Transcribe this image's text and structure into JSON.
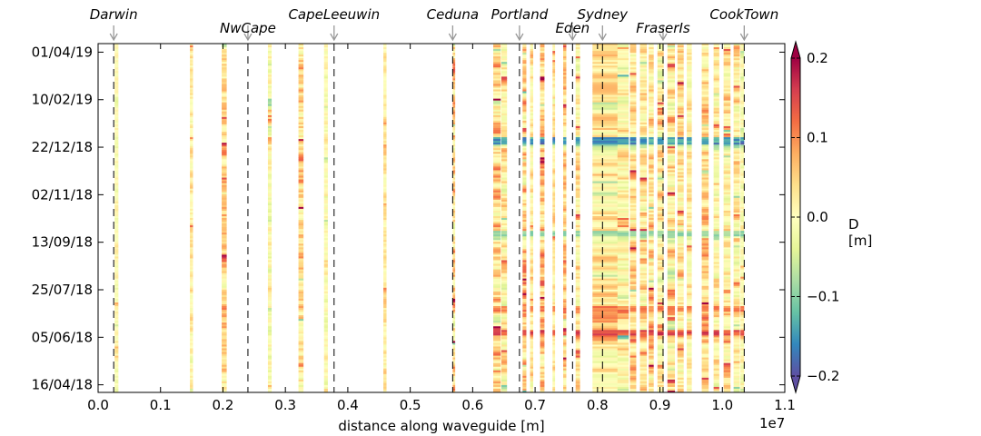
{
  "chart_data": {
    "type": "heatmap",
    "xlabel": "distance along waveguide [m]",
    "x_multiplier_label": "1e7",
    "x_tick_labels": [
      "0.0",
      "0.1",
      "0.2",
      "0.3",
      "0.4",
      "0.5",
      "0.6",
      "0.7",
      "0.8",
      "0.9",
      "1.0",
      "1.1"
    ],
    "x_ticks": [
      0.0,
      0.1,
      0.2,
      0.3,
      0.4,
      0.5,
      0.6,
      0.7,
      0.8,
      0.9,
      1.0,
      1.1
    ],
    "xlim": [
      0.0,
      1.1
    ],
    "y_tick_labels": [
      "01/04/19",
      "10/02/19",
      "22/12/18",
      "02/11/18",
      "13/09/18",
      "25/07/18",
      "05/06/18",
      "16/04/18"
    ],
    "ylim": [
      "2018-04-08",
      "2019-04-10"
    ],
    "y_ticks": [
      "2019-04-01",
      "2019-02-10",
      "2018-12-22",
      "2018-11-02",
      "2018-09-13",
      "2018-07-25",
      "2018-06-05",
      "2018-04-16"
    ],
    "colorbar": {
      "label": "D\n[m]",
      "label_lines": [
        "D",
        "[m]"
      ],
      "range": [
        -0.2,
        0.2
      ],
      "ticks": [
        0.2,
        0.1,
        0.0,
        -0.1,
        -0.2
      ],
      "tick_labels": [
        "0.2",
        "0.1",
        "0.0",
        "−0.1",
        "−0.2"
      ],
      "extend": "both",
      "colormap": "Spectral_r"
    },
    "stations": [
      {
        "name": "Darwin",
        "x": 0.025
      },
      {
        "name": "NwCape",
        "x": 0.24
      },
      {
        "name": "CapeLeeuwin",
        "x": 0.378
      },
      {
        "name": "Ceduna",
        "x": 0.568
      },
      {
        "name": "Portland",
        "x": 0.675
      },
      {
        "name": "Eden",
        "x": 0.76
      },
      {
        "name": "Sydney",
        "x": 0.808
      },
      {
        "name": "FraserIs",
        "x": 0.905
      },
      {
        "name": "CookTown",
        "x": 1.035
      }
    ],
    "data_columns": [
      {
        "x": 0.0265,
        "width": 0.006,
        "bias": 0.0,
        "spread": 0.05
      },
      {
        "x": 0.147,
        "width": 0.005,
        "bias": 0.02,
        "spread": 0.07
      },
      {
        "x": 0.198,
        "width": 0.008,
        "bias": 0.05,
        "spread": 0.1
      },
      {
        "x": 0.272,
        "width": 0.006,
        "bias": 0.0,
        "spread": 0.08
      },
      {
        "x": 0.321,
        "width": 0.008,
        "bias": 0.04,
        "spread": 0.11
      },
      {
        "x": 0.362,
        "width": 0.006,
        "bias": 0.0,
        "spread": 0.06
      },
      {
        "x": 0.457,
        "width": 0.005,
        "bias": 0.02,
        "spread": 0.06
      },
      {
        "x": 0.568,
        "width": 0.004,
        "bias": 0.05,
        "spread": 0.12
      },
      {
        "x": 0.633,
        "width": 0.012,
        "bias": 0.03,
        "spread": 0.13
      },
      {
        "x": 0.646,
        "width": 0.009,
        "bias": 0.02,
        "spread": 0.1
      },
      {
        "x": 0.68,
        "width": 0.006,
        "bias": 0.05,
        "spread": 0.13
      },
      {
        "x": 0.692,
        "width": 0.005,
        "bias": 0.02,
        "spread": 0.08
      },
      {
        "x": 0.708,
        "width": 0.007,
        "bias": 0.06,
        "spread": 0.11
      },
      {
        "x": 0.728,
        "width": 0.004,
        "bias": 0.03,
        "spread": 0.07
      },
      {
        "x": 0.745,
        "width": 0.005,
        "bias": 0.05,
        "spread": 0.1
      },
      {
        "x": 0.765,
        "width": 0.007,
        "bias": 0.02,
        "spread": 0.09
      },
      {
        "x": 0.792,
        "width": 0.046,
        "bias": 0.03,
        "spread": 0.1
      },
      {
        "x": 0.832,
        "width": 0.018,
        "bias": 0.01,
        "spread": 0.11
      },
      {
        "x": 0.852,
        "width": 0.01,
        "bias": 0.03,
        "spread": 0.1
      },
      {
        "x": 0.868,
        "width": 0.011,
        "bias": 0.02,
        "spread": 0.09
      },
      {
        "x": 0.882,
        "width": 0.008,
        "bias": 0.04,
        "spread": 0.11
      },
      {
        "x": 0.896,
        "width": 0.01,
        "bias": 0.02,
        "spread": 0.1
      },
      {
        "x": 0.912,
        "width": 0.012,
        "bias": 0.02,
        "spread": 0.12
      },
      {
        "x": 0.928,
        "width": 0.01,
        "bias": 0.03,
        "spread": 0.1
      },
      {
        "x": 0.943,
        "width": 0.008,
        "bias": 0.02,
        "spread": 0.08
      },
      {
        "x": 0.967,
        "width": 0.011,
        "bias": 0.05,
        "spread": 0.1
      },
      {
        "x": 0.986,
        "width": 0.009,
        "bias": 0.01,
        "spread": 0.09
      },
      {
        "x": 1.002,
        "width": 0.011,
        "bias": 0.02,
        "spread": 0.1
      },
      {
        "x": 1.018,
        "width": 0.01,
        "bias": 0.01,
        "spread": 0.09
      },
      {
        "x": 1.029,
        "width": 0.006,
        "bias": 0.0,
        "spread": 0.06
      }
    ],
    "event_rows": [
      {
        "date": "2018-12-29",
        "value": -0.18
      },
      {
        "date": "2018-12-30",
        "value": -0.16
      },
      {
        "date": "2018-09-24",
        "value": -0.1
      },
      {
        "date": "2018-06-10",
        "value": 0.16
      },
      {
        "date": "2018-07-05",
        "value": 0.12
      }
    ],
    "grid": false
  }
}
